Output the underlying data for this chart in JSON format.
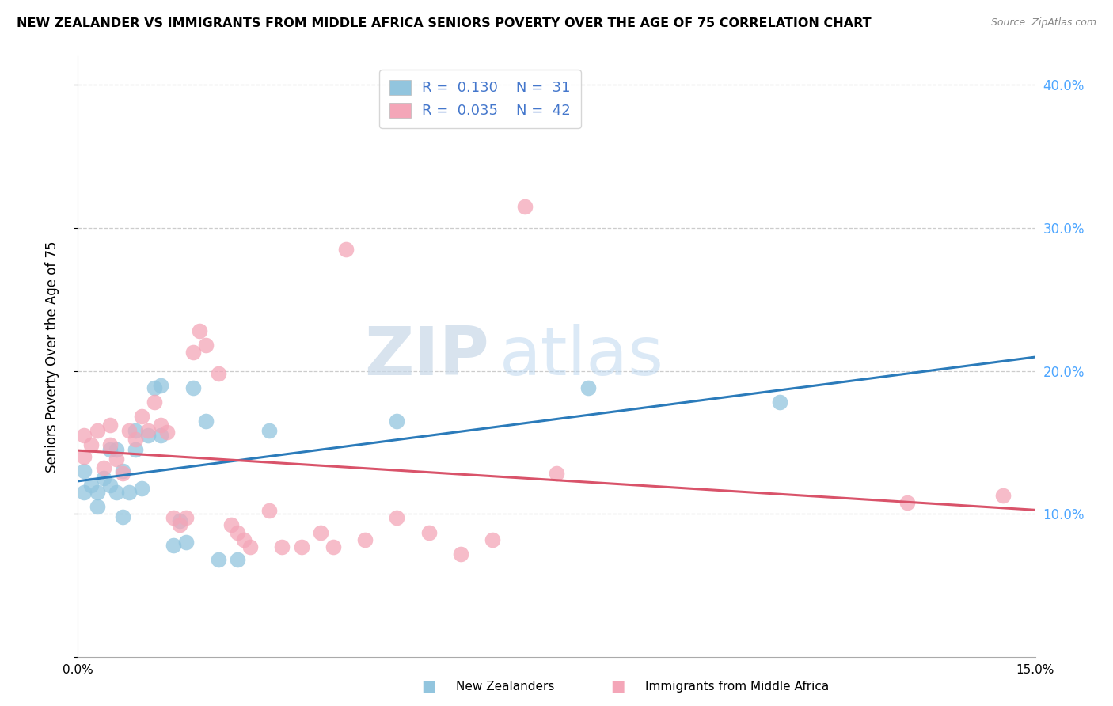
{
  "title": "NEW ZEALANDER VS IMMIGRANTS FROM MIDDLE AFRICA SENIORS POVERTY OVER THE AGE OF 75 CORRELATION CHART",
  "source": "Source: ZipAtlas.com",
  "ylabel": "Seniors Poverty Over the Age of 75",
  "ytick_vals": [
    0.0,
    0.1,
    0.2,
    0.3,
    0.4
  ],
  "ytick_labels": [
    "",
    "10.0%",
    "20.0%",
    "30.0%",
    "40.0%"
  ],
  "xlim": [
    0.0,
    0.15
  ],
  "ylim": [
    0.0,
    0.42
  ],
  "watermark_zip": "ZIP",
  "watermark_atlas": "atlas",
  "color_blue": "#92c5de",
  "color_pink": "#f4a6b8",
  "color_line_blue": "#2b7bba",
  "color_line_pink": "#d9536a",
  "color_ytick": "#4da6ff",
  "legend_r1": "R = ",
  "legend_v1": "0.130",
  "legend_n1": "N = ",
  "legend_nv1": "31",
  "legend_r2": "R = ",
  "legend_v2": "0.035",
  "legend_n2": "N = ",
  "legend_nv2": "42",
  "bottom_label1": "New Zealanders",
  "bottom_label2": "Immigrants from Middle Africa",
  "nz_x": [
    0.001,
    0.001,
    0.002,
    0.003,
    0.003,
    0.004,
    0.005,
    0.005,
    0.006,
    0.006,
    0.007,
    0.007,
    0.008,
    0.009,
    0.009,
    0.01,
    0.011,
    0.012,
    0.013,
    0.013,
    0.015,
    0.016,
    0.017,
    0.018,
    0.02,
    0.022,
    0.025,
    0.03,
    0.05,
    0.08,
    0.11
  ],
  "nz_y": [
    0.13,
    0.115,
    0.12,
    0.115,
    0.105,
    0.125,
    0.12,
    0.145,
    0.145,
    0.115,
    0.13,
    0.098,
    0.115,
    0.158,
    0.145,
    0.118,
    0.155,
    0.188,
    0.19,
    0.155,
    0.078,
    0.095,
    0.08,
    0.188,
    0.165,
    0.068,
    0.068,
    0.158,
    0.165,
    0.188,
    0.178
  ],
  "maf_x": [
    0.001,
    0.001,
    0.002,
    0.003,
    0.004,
    0.005,
    0.005,
    0.006,
    0.007,
    0.008,
    0.009,
    0.01,
    0.011,
    0.012,
    0.013,
    0.014,
    0.015,
    0.016,
    0.017,
    0.018,
    0.019,
    0.02,
    0.022,
    0.024,
    0.025,
    0.026,
    0.027,
    0.03,
    0.032,
    0.035,
    0.038,
    0.04,
    0.042,
    0.045,
    0.05,
    0.055,
    0.06,
    0.065,
    0.07,
    0.075,
    0.13,
    0.145
  ],
  "maf_y": [
    0.155,
    0.14,
    0.148,
    0.158,
    0.132,
    0.148,
    0.162,
    0.138,
    0.128,
    0.158,
    0.152,
    0.168,
    0.158,
    0.178,
    0.162,
    0.157,
    0.097,
    0.092,
    0.097,
    0.213,
    0.228,
    0.218,
    0.198,
    0.092,
    0.087,
    0.082,
    0.077,
    0.102,
    0.077,
    0.077,
    0.087,
    0.077,
    0.285,
    0.082,
    0.097,
    0.087,
    0.072,
    0.082,
    0.315,
    0.128,
    0.108,
    0.113
  ]
}
